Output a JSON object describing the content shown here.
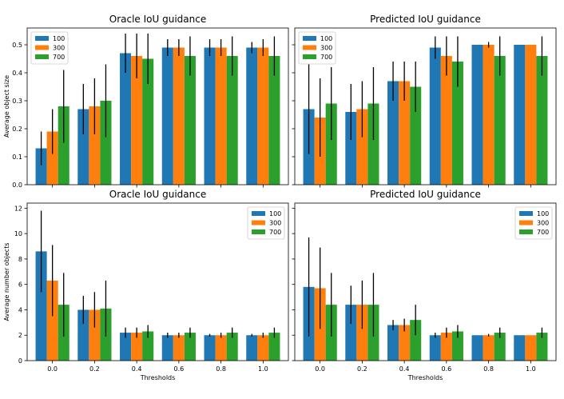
{
  "chart_data": [
    {
      "type": "bar",
      "title": "Oracle IoU guidance",
      "xlabel": "",
      "ylabel": "Average object size",
      "categories": [
        "0.0",
        "0.2",
        "0.4",
        "0.6",
        "0.8",
        "1.0"
      ],
      "ylim": [
        0,
        0.56
      ],
      "yticks": [
        "0.0",
        "0.1",
        "0.2",
        "0.3",
        "0.4",
        "0.5"
      ],
      "show_xticklabels": false,
      "legend": "top-left",
      "series": [
        {
          "name": "100",
          "color": "#1f77b4",
          "values": [
            0.13,
            0.27,
            0.47,
            0.49,
            0.49,
            0.49
          ],
          "err": [
            0.06,
            0.09,
            0.07,
            0.03,
            0.03,
            0.02
          ]
        },
        {
          "name": "300",
          "color": "#ff7f0e",
          "values": [
            0.19,
            0.28,
            0.46,
            0.49,
            0.49,
            0.49
          ],
          "err": [
            0.08,
            0.1,
            0.08,
            0.03,
            0.03,
            0.03
          ]
        },
        {
          "name": "700",
          "color": "#2ca02c",
          "values": [
            0.28,
            0.3,
            0.45,
            0.46,
            0.46,
            0.46
          ],
          "err": [
            0.13,
            0.13,
            0.09,
            0.07,
            0.07,
            0.07
          ]
        }
      ]
    },
    {
      "type": "bar",
      "title": "Predicted IoU guidance",
      "xlabel": "",
      "ylabel": "",
      "categories": [
        "0.0",
        "0.2",
        "0.4",
        "0.6",
        "0.8",
        "1.0"
      ],
      "ylim": [
        0,
        0.56
      ],
      "yticks": [],
      "show_xticklabels": false,
      "legend": "top-left",
      "series": [
        {
          "name": "100",
          "color": "#1f77b4",
          "values": [
            0.27,
            0.26,
            0.37,
            0.49,
            0.5,
            0.5
          ],
          "err": [
            0.16,
            0.1,
            0.07,
            0.04,
            0.0,
            0.0
          ]
        },
        {
          "name": "300",
          "color": "#ff7f0e",
          "values": [
            0.24,
            0.27,
            0.37,
            0.46,
            0.5,
            0.5
          ],
          "err": [
            0.14,
            0.1,
            0.07,
            0.07,
            0.01,
            0.0
          ]
        },
        {
          "name": "700",
          "color": "#2ca02c",
          "values": [
            0.29,
            0.29,
            0.35,
            0.44,
            0.46,
            0.46
          ],
          "err": [
            0.13,
            0.13,
            0.09,
            0.09,
            0.07,
            0.07
          ]
        }
      ]
    },
    {
      "type": "bar",
      "title": "Oracle IoU guidance",
      "xlabel": "Thresholds",
      "ylabel": "Average number objects",
      "categories": [
        "0.0",
        "0.2",
        "0.4",
        "0.6",
        "0.8",
        "1.0"
      ],
      "ylim": [
        0,
        12.4
      ],
      "yticks": [
        "0",
        "2",
        "4",
        "6",
        "8",
        "10",
        "12"
      ],
      "show_xticklabels": true,
      "legend": "top-right",
      "series": [
        {
          "name": "100",
          "color": "#1f77b4",
          "values": [
            8.6,
            4.0,
            2.2,
            2.0,
            2.0,
            2.0
          ],
          "err": [
            3.2,
            1.1,
            0.4,
            0.2,
            0.1,
            0.1
          ]
        },
        {
          "name": "300",
          "color": "#ff7f0e",
          "values": [
            6.3,
            4.0,
            2.2,
            2.0,
            2.0,
            2.0
          ],
          "err": [
            2.8,
            1.4,
            0.4,
            0.2,
            0.2,
            0.2
          ]
        },
        {
          "name": "700",
          "color": "#2ca02c",
          "values": [
            4.4,
            4.1,
            2.3,
            2.2,
            2.2,
            2.2
          ],
          "err": [
            2.5,
            2.2,
            0.5,
            0.4,
            0.4,
            0.4
          ]
        }
      ]
    },
    {
      "type": "bar",
      "title": "Predicted IoU guidance",
      "xlabel": "Thresholds",
      "ylabel": "",
      "categories": [
        "0.0",
        "0.2",
        "0.4",
        "0.6",
        "0.8",
        "1.0"
      ],
      "ylim": [
        0,
        12.4
      ],
      "yticks": [],
      "show_xticklabels": true,
      "legend": "top-right",
      "series": [
        {
          "name": "100",
          "color": "#1f77b4",
          "values": [
            5.8,
            4.4,
            2.8,
            2.0,
            2.0,
            2.0
          ],
          "err": [
            3.9,
            1.5,
            0.4,
            0.2,
            0.0,
            0.0
          ]
        },
        {
          "name": "300",
          "color": "#ff7f0e",
          "values": [
            5.7,
            4.4,
            2.8,
            2.2,
            2.0,
            2.0
          ],
          "err": [
            3.2,
            1.9,
            0.5,
            0.4,
            0.1,
            0.0
          ]
        },
        {
          "name": "700",
          "color": "#2ca02c",
          "values": [
            4.4,
            4.4,
            3.2,
            2.3,
            2.2,
            2.2
          ],
          "err": [
            2.5,
            2.5,
            1.2,
            0.5,
            0.4,
            0.4
          ]
        }
      ]
    }
  ]
}
